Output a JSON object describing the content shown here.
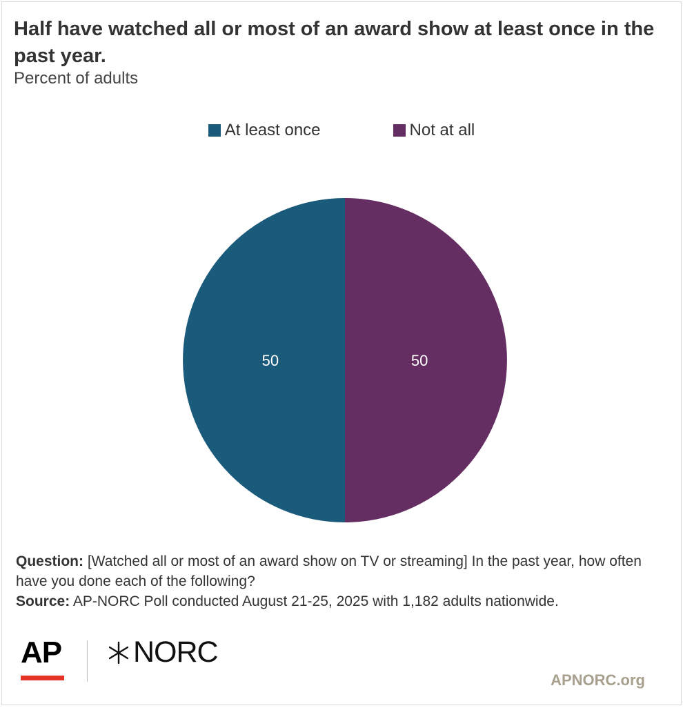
{
  "title": "Half have watched all or most of an award show at least once in the past year.",
  "subtitle": "Percent of adults",
  "chart_data": {
    "type": "pie",
    "title": "Half have watched all or most of an award show at least once in the past year.",
    "subtitle": "Percent of adults",
    "legend_position": "top-center",
    "categories": [
      "At least once",
      "Not at all"
    ],
    "values": [
      50,
      50
    ],
    "colors": [
      "#1a5b7b",
      "#652e62"
    ],
    "data_labels": [
      "50",
      "50"
    ],
    "label_color": "#ffffff"
  },
  "notes": {
    "question_label": "Question:",
    "question_text": " [Watched all or most of an award show on TV or streaming] In the past year, how often have you done each of the following?",
    "source_label": "Source:",
    "source_text": " AP-NORC Poll conducted August 21-25, 2025 with 1,182 adults nationwide."
  },
  "branding": {
    "ap_logo": "AP",
    "norc_logo": "NORC",
    "ap_bar_color": "#e6332a",
    "site": "APNORC.org"
  }
}
